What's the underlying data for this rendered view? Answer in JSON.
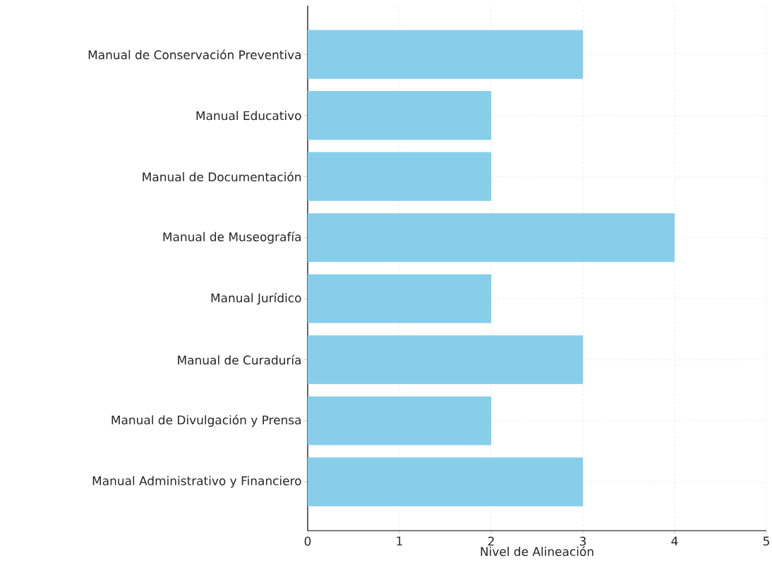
{
  "chart_data": {
    "type": "bar",
    "orientation": "horizontal",
    "xlabel": "Nivel de Alineación",
    "categories": [
      "Manual de Conservación Preventiva",
      "Manual Educativo",
      "Manual de Documentación",
      "Manual de Museografía",
      "Manual Jurídico",
      "Manual de Curaduría",
      "Manual de Divulgación y Prensa",
      "Manual Administrativo y Financiero"
    ],
    "values": [
      3,
      2,
      2,
      4,
      2,
      3,
      2,
      3
    ],
    "color": "#87ceeb",
    "xlim": [
      0,
      5
    ],
    "xticks": [
      0,
      1,
      2,
      3,
      4,
      5
    ],
    "grid": true
  }
}
